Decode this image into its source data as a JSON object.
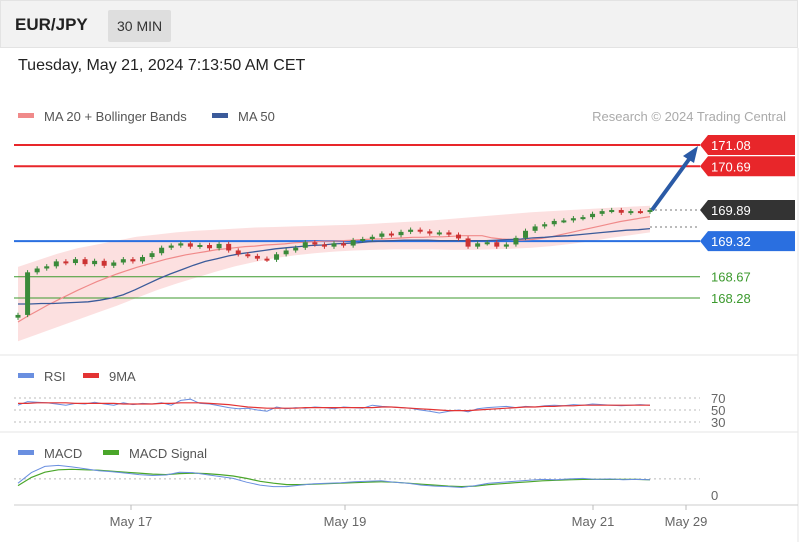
{
  "header": {
    "pair": "EUR/JPY",
    "timeframe": "30 MIN"
  },
  "datetime": "Tuesday, May 21, 2024 7:13:50 AM CET",
  "legend": {
    "ma20": "MA 20 + Bollinger Bands",
    "ma50": "MA 50",
    "copyright": "Research © 2024 Trading Central"
  },
  "colors": {
    "resistance": "#e8262a",
    "support": "#2a6fe0",
    "support_green": "#3c9a2e",
    "current": "#333333",
    "bollinger": "#fbd3d3",
    "ma20": "#f08a8a",
    "ma50": "#3b5b9a",
    "up": "#3a8a3a",
    "down": "#cc3333",
    "arrow": "#2a5aa6",
    "rsi": "#6a8fe0",
    "rsi_ma": "#e33333",
    "macd": "#6a8fe0",
    "macd_signal": "#4aa62a"
  },
  "chart_data": [
    {
      "type": "line",
      "title": "EUR/JPY 30 MIN",
      "x_ticks": [
        "May 17",
        "May 19",
        "May 21",
        "May 29"
      ],
      "ylim": [
        167.7,
        171.5
      ],
      "levels": [
        {
          "value": 171.08,
          "label": "171.08",
          "kind": "resistance"
        },
        {
          "value": 170.69,
          "label": "170.69",
          "kind": "resistance"
        },
        {
          "value": 169.89,
          "label": "169.89",
          "kind": "current"
        },
        {
          "value": 169.32,
          "label": "169.32",
          "kind": "support"
        },
        {
          "value": 168.67,
          "label": "168.67",
          "kind": "support_green"
        },
        {
          "value": 168.28,
          "label": "168.28",
          "kind": "support_green"
        }
      ],
      "price": [
        167.97,
        168.75,
        168.82,
        168.86,
        168.95,
        168.92,
        168.99,
        168.9,
        168.96,
        168.87,
        168.93,
        168.99,
        168.95,
        169.03,
        169.1,
        169.2,
        169.24,
        169.28,
        169.22,
        169.25,
        169.19,
        169.27,
        169.15,
        169.08,
        169.05,
        169.0,
        168.98,
        169.08,
        169.15,
        169.2,
        169.3,
        169.26,
        169.22,
        169.28,
        169.24,
        169.34,
        169.36,
        169.4,
        169.46,
        169.43,
        169.49,
        169.53,
        169.5,
        169.46,
        169.48,
        169.44,
        169.37,
        169.22,
        169.28,
        169.3,
        169.22,
        169.26,
        169.38,
        169.51,
        169.59,
        169.63,
        169.69,
        169.7,
        169.74,
        169.76,
        169.82,
        169.87,
        169.89,
        169.84,
        169.87,
        169.86,
        169.89
      ],
      "ma50": [
        168.17,
        168.17,
        168.18,
        168.18,
        168.19,
        168.2,
        168.21,
        168.24,
        168.28,
        168.34,
        168.43,
        168.53,
        168.63,
        168.72,
        168.8,
        168.88,
        168.95,
        169.0,
        169.05,
        169.09,
        169.12,
        169.15,
        169.18,
        169.2,
        169.22,
        169.24,
        169.25,
        169.27,
        169.28,
        169.29,
        169.31,
        169.32,
        169.33,
        169.34,
        169.34,
        169.34,
        169.33,
        169.33,
        169.33,
        169.33,
        169.33,
        169.34,
        169.35,
        169.36,
        169.38,
        169.39,
        169.41,
        169.42,
        169.44,
        169.46,
        169.48,
        169.5,
        169.52,
        169.53,
        169.55
      ],
      "ma20": [
        167.84,
        167.95,
        168.05,
        168.15,
        168.24,
        168.33,
        168.42,
        168.5,
        168.58,
        168.65,
        168.72,
        168.78,
        168.84,
        168.89,
        168.94,
        168.99,
        169.03,
        169.07,
        169.1,
        169.13,
        169.16,
        169.18,
        169.2,
        169.22,
        169.23,
        169.25,
        169.26,
        169.27,
        169.29,
        169.3,
        169.31,
        169.32,
        169.32,
        169.33,
        169.34,
        169.35,
        169.36,
        169.36,
        169.37,
        169.38,
        169.39,
        169.39,
        169.4,
        169.4,
        169.41,
        169.42,
        169.42,
        169.42,
        169.38,
        169.36,
        169.35,
        169.34,
        169.35,
        169.37,
        169.4,
        169.44,
        169.48,
        169.52,
        169.56,
        169.6,
        169.64,
        169.68,
        169.71,
        169.74,
        169.77
      ],
      "bollinger_upper": [
        168.85,
        168.97,
        169.09,
        169.19,
        169.26,
        169.33,
        169.4,
        169.44,
        169.48,
        169.51,
        169.53,
        169.55,
        169.57,
        169.58,
        169.59,
        169.6,
        169.61,
        169.62,
        169.64,
        169.66,
        169.68,
        169.7,
        169.73,
        169.76,
        169.79,
        169.82,
        169.85,
        169.87,
        169.89,
        169.91,
        169.93,
        169.95,
        169.97
      ],
      "bollinger_lower": [
        167.49,
        167.62,
        167.75,
        167.88,
        168.01,
        168.14,
        168.28,
        168.42,
        168.54,
        168.65,
        168.76,
        168.86,
        168.94,
        169.01,
        169.06,
        169.1,
        169.13,
        169.15,
        169.16,
        169.17,
        169.17,
        169.17,
        169.16,
        169.16,
        169.17,
        169.18,
        169.2,
        169.23,
        169.27,
        169.32,
        169.38,
        169.43,
        169.48
      ]
    },
    {
      "type": "line",
      "title": "RSI",
      "series": [
        {
          "name": "RSI",
          "values": [
            58,
            64,
            63,
            62,
            60,
            58,
            61,
            60,
            63,
            60,
            58,
            62,
            59,
            61,
            60,
            62,
            58,
            66,
            68,
            61,
            60,
            57,
            54,
            52,
            53,
            50,
            48,
            55,
            52,
            54,
            53,
            55,
            54,
            52,
            55,
            54,
            53,
            58,
            56,
            55,
            54,
            53,
            50,
            48,
            45,
            48,
            50,
            47,
            52,
            54,
            55,
            56,
            54,
            56,
            55,
            57,
            58,
            57,
            59,
            58,
            60,
            59,
            58,
            57,
            58,
            59,
            58
          ]
        },
        {
          "name": "9MA",
          "values": [
            61,
            61,
            62,
            62,
            62,
            62,
            61,
            61,
            61,
            61,
            61,
            60,
            60,
            60,
            60,
            61,
            61,
            62,
            62,
            62,
            61,
            60,
            59,
            57,
            55,
            54,
            53,
            53,
            53,
            53,
            54,
            54,
            54,
            54,
            54,
            54,
            54,
            54,
            55,
            55,
            54,
            53,
            52,
            51,
            50,
            49,
            49,
            49,
            50,
            51,
            52,
            53,
            54,
            55,
            55,
            56,
            56,
            57,
            57,
            58,
            58,
            58,
            58,
            58,
            58,
            58,
            58
          ]
        }
      ],
      "y_ticks": [
        "70",
        "50",
        "30"
      ]
    },
    {
      "type": "line",
      "title": "MACD",
      "series": [
        {
          "name": "MACD",
          "values": [
            0.1,
            0.32,
            0.45,
            0.47,
            0.44,
            0.4,
            0.36,
            0.34,
            0.31,
            0.28,
            0.26,
            0.27,
            0.33,
            0.32,
            0.28,
            0.24,
            0.2,
            0.12,
            0.06,
            0.03,
            0.03,
            0.06,
            0.09,
            0.1,
            0.11,
            0.13,
            0.14,
            0.15,
            0.12,
            0.1,
            0.06,
            0.04,
            0.03,
            0.01,
            0.05,
            0.1,
            0.12,
            0.14,
            0.16,
            0.18,
            0.17,
            0.19,
            0.2,
            0.18,
            0.19,
            0.17,
            0.18,
            0.17
          ]
        },
        {
          "name": "MACD Signal",
          "values": [
            0.05,
            0.22,
            0.33,
            0.38,
            0.39,
            0.38,
            0.37,
            0.35,
            0.33,
            0.31,
            0.29,
            0.28,
            0.3,
            0.31,
            0.3,
            0.28,
            0.25,
            0.2,
            0.14,
            0.1,
            0.07,
            0.07,
            0.08,
            0.09,
            0.1,
            0.11,
            0.12,
            0.13,
            0.12,
            0.1,
            0.08,
            0.06,
            0.04,
            0.03,
            0.04,
            0.07,
            0.09,
            0.11,
            0.13,
            0.15,
            0.16,
            0.17,
            0.18,
            0.18,
            0.18,
            0.18,
            0.18,
            0.17
          ]
        }
      ],
      "y_ticks": [
        "0"
      ]
    }
  ]
}
